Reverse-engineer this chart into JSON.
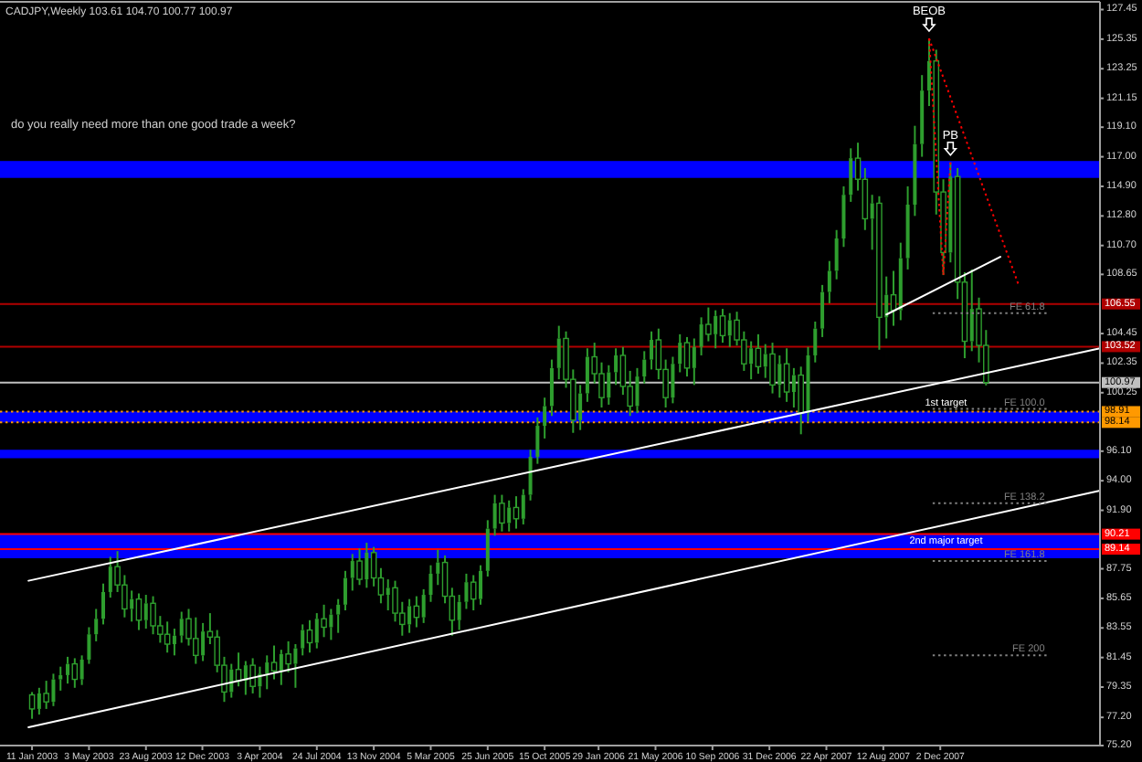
{
  "chart_data": {
    "type": "candlestick",
    "title": "CADJPY,Weekly 103.61 104.70 100.77 100.97",
    "color": "#2e9e2e",
    "x": [
      "2003-01-11",
      "2003-01-25",
      "2003-02-08",
      "2003-02-22",
      "2003-03-08",
      "2003-03-22",
      "2003-04-05",
      "2003-04-19",
      "2003-05-03",
      "2003-05-17",
      "2003-05-31",
      "2003-06-14",
      "2003-06-28",
      "2003-07-12",
      "2003-07-26",
      "2003-08-09",
      "2003-08-23",
      "2003-09-06",
      "2003-09-20",
      "2003-10-04",
      "2003-10-18",
      "2003-11-01",
      "2003-11-15",
      "2003-11-29",
      "2003-12-13",
      "2003-12-27",
      "2004-01-10",
      "2004-01-24",
      "2004-02-07",
      "2004-02-21",
      "2004-03-06",
      "2004-03-20",
      "2004-04-03",
      "2004-04-17",
      "2004-05-01",
      "2004-05-15",
      "2004-05-29",
      "2004-06-12",
      "2004-06-26",
      "2004-07-10",
      "2004-07-24",
      "2004-08-07",
      "2004-08-21",
      "2004-09-04",
      "2004-09-18",
      "2004-10-02",
      "2004-10-16",
      "2004-10-30",
      "2004-11-13",
      "2004-11-27",
      "2004-12-11",
      "2004-12-25",
      "2005-01-08",
      "2005-01-22",
      "2005-02-05",
      "2005-02-19",
      "2005-03-05",
      "2005-03-19",
      "2005-04-02",
      "2005-04-16",
      "2005-04-30",
      "2005-05-14",
      "2005-05-28",
      "2005-06-11",
      "2005-06-25",
      "2005-07-09",
      "2005-07-23",
      "2005-08-06",
      "2005-08-20",
      "2005-09-03",
      "2005-09-17",
      "2005-10-01",
      "2005-10-15",
      "2005-10-29",
      "2005-11-12",
      "2005-11-26",
      "2005-12-10",
      "2005-12-24",
      "2006-01-07",
      "2006-01-21",
      "2006-02-04",
      "2006-02-18",
      "2006-03-04",
      "2006-03-18",
      "2006-04-01",
      "2006-04-15",
      "2006-04-29",
      "2006-05-13",
      "2006-05-27",
      "2006-06-10",
      "2006-06-24",
      "2006-07-08",
      "2006-07-22",
      "2006-08-05",
      "2006-08-19",
      "2006-09-02",
      "2006-09-16",
      "2006-09-30",
      "2006-10-14",
      "2006-10-28",
      "2006-11-11",
      "2006-11-25",
      "2006-12-09",
      "2006-12-23",
      "2007-01-06",
      "2007-01-20",
      "2007-02-03",
      "2007-02-17",
      "2007-03-03",
      "2007-03-17",
      "2007-03-31",
      "2007-04-14",
      "2007-04-28",
      "2007-05-12",
      "2007-05-26",
      "2007-06-09",
      "2007-06-23",
      "2007-07-07",
      "2007-07-21",
      "2007-08-04",
      "2007-08-18",
      "2007-09-01",
      "2007-09-15",
      "2007-09-29",
      "2007-10-13",
      "2007-10-27",
      "2007-11-10",
      "2007-11-24",
      "2007-12-08",
      "2007-12-22",
      "2008-01-05",
      "2008-01-19",
      "2008-02-02",
      "2008-02-16",
      "2008-03-01"
    ],
    "ohlc": [
      [
        78.8,
        79.0,
        77.1,
        77.8
      ],
      [
        77.8,
        79.3,
        77.4,
        78.9
      ],
      [
        78.9,
        79.8,
        77.8,
        78.3
      ],
      [
        78.3,
        80.3,
        78.0,
        79.9
      ],
      [
        79.9,
        80.8,
        79.1,
        80.2
      ],
      [
        80.2,
        81.5,
        79.6,
        81.0
      ],
      [
        81.0,
        81.4,
        79.3,
        79.9
      ],
      [
        79.9,
        81.6,
        79.5,
        81.3
      ],
      [
        81.3,
        83.6,
        81.0,
        83.1
      ],
      [
        83.1,
        84.9,
        82.6,
        84.2
      ],
      [
        84.2,
        86.7,
        83.8,
        86.1
      ],
      [
        86.1,
        88.6,
        85.7,
        87.9
      ],
      [
        87.9,
        89.0,
        86.1,
        86.6
      ],
      [
        86.6,
        87.3,
        84.3,
        84.9
      ],
      [
        84.9,
        86.2,
        84.0,
        85.6
      ],
      [
        85.6,
        86.0,
        83.4,
        84.1
      ],
      [
        84.1,
        85.9,
        83.5,
        85.3
      ],
      [
        85.3,
        85.8,
        83.1,
        83.7
      ],
      [
        83.7,
        84.4,
        82.5,
        83.1
      ],
      [
        83.1,
        84.0,
        81.8,
        82.4
      ],
      [
        82.4,
        83.5,
        81.6,
        83.0
      ],
      [
        83.0,
        84.7,
        82.5,
        84.2
      ],
      [
        84.2,
        84.9,
        82.3,
        82.8
      ],
      [
        82.8,
        84.3,
        81.0,
        81.6
      ],
      [
        81.6,
        83.9,
        81.2,
        83.3
      ],
      [
        83.3,
        84.6,
        82.4,
        82.9
      ],
      [
        82.9,
        83.4,
        80.4,
        80.9
      ],
      [
        80.9,
        81.5,
        78.3,
        79.0
      ],
      [
        79.0,
        81.0,
        78.6,
        80.6
      ],
      [
        80.6,
        81.8,
        79.4,
        79.8
      ],
      [
        79.8,
        81.2,
        78.8,
        80.9
      ],
      [
        80.9,
        81.4,
        78.9,
        79.4
      ],
      [
        79.4,
        80.8,
        78.6,
        80.3
      ],
      [
        80.3,
        81.6,
        79.2,
        81.1
      ],
      [
        81.1,
        82.3,
        79.9,
        80.5
      ],
      [
        80.5,
        82.0,
        79.5,
        81.7
      ],
      [
        81.7,
        82.6,
        80.4,
        81.0
      ],
      [
        81.0,
        82.4,
        79.3,
        82.1
      ],
      [
        82.1,
        83.8,
        81.6,
        83.4
      ],
      [
        83.4,
        84.1,
        81.8,
        82.5
      ],
      [
        82.5,
        84.6,
        82.1,
        84.2
      ],
      [
        84.2,
        85.2,
        82.9,
        83.6
      ],
      [
        83.6,
        84.9,
        82.7,
        84.5
      ],
      [
        84.5,
        85.6,
        83.2,
        85.2
      ],
      [
        85.2,
        87.6,
        84.8,
        87.1
      ],
      [
        87.1,
        88.8,
        86.2,
        88.3
      ],
      [
        88.3,
        89.2,
        86.6,
        87.0
      ],
      [
        87.0,
        89.6,
        86.4,
        88.9
      ],
      [
        88.9,
        89.3,
        86.5,
        87.1
      ],
      [
        87.1,
        87.8,
        85.3,
        85.9
      ],
      [
        85.9,
        87.0,
        84.8,
        86.4
      ],
      [
        86.4,
        86.9,
        84.0,
        84.6
      ],
      [
        84.6,
        85.4,
        83.0,
        83.8
      ],
      [
        83.8,
        85.6,
        83.2,
        85.1
      ],
      [
        85.1,
        85.8,
        83.6,
        84.3
      ],
      [
        84.3,
        86.3,
        83.9,
        85.9
      ],
      [
        85.9,
        88.0,
        85.4,
        87.4
      ],
      [
        87.4,
        89.1,
        86.6,
        88.2
      ],
      [
        88.2,
        88.7,
        85.3,
        85.8
      ],
      [
        85.8,
        86.4,
        83.0,
        84.1
      ],
      [
        84.1,
        85.9,
        83.4,
        85.4
      ],
      [
        85.4,
        87.4,
        84.9,
        86.8
      ],
      [
        86.8,
        87.3,
        84.8,
        85.6
      ],
      [
        85.6,
        88.0,
        85.2,
        87.6
      ],
      [
        87.6,
        91.2,
        87.2,
        90.6
      ],
      [
        90.6,
        93.0,
        90.1,
        92.4
      ],
      [
        92.4,
        93.0,
        90.4,
        91.0
      ],
      [
        91.0,
        92.6,
        90.4,
        92.1
      ],
      [
        92.1,
        92.9,
        90.6,
        91.3
      ],
      [
        91.3,
        93.4,
        90.9,
        93.0
      ],
      [
        93.0,
        96.2,
        92.6,
        95.7
      ],
      [
        95.7,
        98.5,
        95.2,
        97.9
      ],
      [
        97.9,
        99.9,
        97.0,
        99.3
      ],
      [
        99.3,
        102.6,
        98.6,
        102.0
      ],
      [
        102.0,
        105.0,
        101.2,
        104.1
      ],
      [
        104.1,
        104.6,
        100.6,
        101.2
      ],
      [
        101.2,
        101.9,
        97.4,
        98.3
      ],
      [
        98.3,
        100.8,
        97.6,
        100.2
      ],
      [
        100.2,
        103.4,
        99.6,
        102.8
      ],
      [
        102.8,
        103.8,
        100.9,
        101.6
      ],
      [
        101.6,
        102.4,
        99.2,
        99.9
      ],
      [
        99.9,
        102.2,
        99.4,
        101.7
      ],
      [
        101.7,
        103.4,
        100.8,
        102.9
      ],
      [
        102.9,
        103.5,
        100.1,
        100.7
      ],
      [
        100.7,
        101.8,
        98.6,
        99.3
      ],
      [
        99.3,
        102.0,
        98.8,
        101.4
      ],
      [
        101.4,
        103.2,
        100.9,
        102.6
      ],
      [
        102.6,
        104.6,
        101.9,
        104.0
      ],
      [
        104.0,
        104.8,
        101.2,
        101.9
      ],
      [
        101.9,
        102.6,
        99.2,
        99.9
      ],
      [
        99.9,
        102.8,
        99.5,
        102.3
      ],
      [
        102.3,
        104.4,
        101.7,
        103.8
      ],
      [
        103.8,
        104.2,
        101.4,
        102.0
      ],
      [
        102.0,
        104.1,
        100.8,
        103.5
      ],
      [
        103.5,
        105.6,
        102.9,
        105.1
      ],
      [
        105.1,
        106.3,
        103.9,
        104.4
      ],
      [
        104.4,
        106.1,
        103.4,
        105.7
      ],
      [
        105.7,
        106.2,
        103.8,
        104.3
      ],
      [
        104.3,
        105.9,
        103.5,
        105.4
      ],
      [
        105.4,
        106.0,
        103.6,
        104.0
      ],
      [
        104.0,
        104.6,
        101.8,
        102.3
      ],
      [
        102.3,
        103.9,
        101.2,
        103.4
      ],
      [
        103.4,
        104.4,
        101.6,
        102.1
      ],
      [
        102.1,
        103.7,
        101.3,
        103.0
      ],
      [
        103.0,
        103.8,
        100.2,
        100.8
      ],
      [
        100.8,
        102.9,
        99.9,
        102.3
      ],
      [
        102.3,
        103.4,
        99.6,
        100.3
      ],
      [
        100.3,
        102.0,
        99.2,
        101.5
      ],
      [
        101.5,
        102.1,
        97.3,
        98.8
      ],
      [
        98.8,
        103.5,
        98.2,
        102.9
      ],
      [
        102.9,
        105.3,
        102.4,
        104.8
      ],
      [
        104.8,
        107.9,
        104.2,
        107.4
      ],
      [
        107.4,
        109.6,
        106.6,
        108.9
      ],
      [
        108.9,
        111.8,
        108.3,
        111.2
      ],
      [
        111.2,
        114.9,
        110.6,
        114.3
      ],
      [
        114.3,
        117.6,
        113.8,
        116.9
      ],
      [
        116.9,
        118.0,
        114.6,
        115.4
      ],
      [
        115.4,
        116.2,
        111.8,
        112.6
      ],
      [
        112.6,
        114.3,
        110.4,
        113.7
      ],
      [
        113.7,
        114.2,
        103.3,
        105.6
      ],
      [
        105.6,
        108.5,
        104.1,
        107.2
      ],
      [
        107.2,
        108.9,
        105.0,
        106.1
      ],
      [
        106.1,
        110.9,
        105.4,
        109.8
      ],
      [
        109.8,
        114.9,
        109.0,
        113.6
      ],
      [
        113.6,
        119.2,
        112.8,
        117.9
      ],
      [
        117.9,
        122.8,
        117.0,
        121.7
      ],
      [
        121.7,
        125.4,
        120.6,
        123.8
      ],
      [
        123.8,
        124.6,
        112.9,
        114.5
      ],
      [
        114.5,
        115.4,
        108.6,
        110.2
      ],
      [
        110.2,
        116.6,
        109.5,
        115.6
      ],
      [
        115.6,
        116.2,
        106.9,
        108.1
      ],
      [
        108.1,
        108.8,
        102.7,
        103.9
      ],
      [
        103.9,
        109.0,
        103.2,
        106.2
      ],
      [
        106.2,
        107.0,
        102.4,
        103.61
      ],
      [
        103.61,
        104.7,
        100.77,
        100.97
      ]
    ],
    "series": [
      {
        "type": "line",
        "x": [
          "2003-01-04",
          "2008-10-11"
        ],
        "values": [
          86.9,
          103.4
        ],
        "color": "#ffffff"
      },
      {
        "type": "line",
        "x": [
          "2003-01-04",
          "2008-10-11"
        ],
        "values": [
          76.5,
          93.3
        ],
        "color": "#ffffff"
      },
      {
        "type": "line",
        "x": [
          "2007-08-18",
          "2008-03-29"
        ],
        "values": [
          105.8,
          109.9
        ],
        "color": "#ffffff"
      },
      {
        "type": "line",
        "x": [
          "2007-11-10",
          "2008-05-03"
        ],
        "values": [
          125.4,
          108.0
        ],
        "color": "#ff0000",
        "line_style": "dotted"
      },
      {
        "type": "line",
        "x": [
          "2007-11-10",
          "2007-12-08",
          "2007-12-22"
        ],
        "values": [
          125.4,
          108.6,
          116.6
        ],
        "color": "#ff0000",
        "line_style": "dotted"
      },
      {
        "type": "line",
        "name": "FE 61.8",
        "x": [
          "2007-11-17",
          "2008-06-28"
        ],
        "values": [
          105.9,
          105.9
        ],
        "color": "#808080",
        "line_style": "dotted"
      },
      {
        "type": "line",
        "name": "FE 100.0",
        "x": [
          "2007-11-17",
          "2008-06-28"
        ],
        "values": [
          99.1,
          99.1
        ],
        "color": "#808080",
        "line_style": "dotted"
      },
      {
        "type": "line",
        "name": "FE 138.2",
        "x": [
          "2007-11-17",
          "2008-06-28"
        ],
        "values": [
          92.4,
          92.4
        ],
        "color": "#808080",
        "line_style": "dotted"
      },
      {
        "type": "line",
        "name": "FE 161.8",
        "x": [
          "2007-11-17",
          "2008-06-28"
        ],
        "values": [
          88.3,
          88.3
        ],
        "color": "#808080",
        "line_style": "dotted"
      },
      {
        "type": "line",
        "name": "FE 200",
        "x": [
          "2007-11-17",
          "2008-06-28"
        ],
        "values": [
          81.6,
          81.6
        ],
        "color": "#808080",
        "line_style": "dotted"
      }
    ],
    "ref_lines": [
      {
        "axis": "y",
        "value": 106.55,
        "label": "106.55",
        "color": "#b00000"
      },
      {
        "axis": "y",
        "value": 103.52,
        "label": "103.52",
        "color": "#b00000"
      },
      {
        "axis": "y",
        "value": 100.97,
        "label": "100.97",
        "color": "#c0c0c0"
      },
      {
        "axis": "y",
        "value": 98.91,
        "label": "98.91",
        "color": "#ff9900",
        "line_style": "dotted"
      },
      {
        "axis": "y",
        "value": 98.14,
        "label": "98.14",
        "color": "#ff9900",
        "line_style": "dotted"
      },
      {
        "axis": "y",
        "value": 90.21,
        "label": "90.21",
        "color": "#ff0000"
      },
      {
        "axis": "y",
        "value": 89.14,
        "label": "89.14",
        "color": "#ff0000"
      }
    ],
    "bands": [
      {
        "axis": "y",
        "from": 115.5,
        "to": 116.7,
        "color": "#0000ff"
      },
      {
        "axis": "y",
        "from": 98.14,
        "to": 98.91,
        "label": "1st target",
        "color": "#0000ff"
      },
      {
        "axis": "y",
        "from": 95.6,
        "to": 96.2,
        "color": "#0000ff"
      },
      {
        "axis": "y",
        "from": 88.5,
        "to": 90.2,
        "label": "2nd major target",
        "color": "#0000ff"
      }
    ],
    "annotations": [
      "do you really need more than one good trade a week?",
      {
        "text": "BEOB",
        "x": "2007-11-10",
        "y": 125.4
      },
      {
        "text": "PB",
        "x": "2007-12-22",
        "y": 116.6
      }
    ],
    "xlim": [
      "2002-11-09",
      "2008-10-11"
    ],
    "xticks": [
      {
        "value": "2003-01-11",
        "label": "11 Jan 2003"
      },
      {
        "value": "2003-05-03",
        "label": "3 May 2003"
      },
      {
        "value": "2003-08-23",
        "label": "23 Aug 2003"
      },
      {
        "value": "2003-12-12",
        "label": "12 Dec 2003"
      },
      {
        "value": "2004-04-03",
        "label": "3 Apr 2004"
      },
      {
        "value": "2004-07-24",
        "label": "24 Jul 2004"
      },
      {
        "value": "2004-11-13",
        "label": "13 Nov 2004"
      },
      {
        "value": "2005-03-05",
        "label": "5 Mar 2005"
      },
      {
        "value": "2005-06-25",
        "label": "25 Jun 2005"
      },
      {
        "value": "2005-10-15",
        "label": "15 Oct 2005"
      },
      {
        "value": "2006-01-29",
        "label": "29 Jan 2006"
      },
      {
        "value": "2006-05-21",
        "label": "21 May 2006"
      },
      {
        "value": "2006-09-10",
        "label": "10 Sep 2006"
      },
      {
        "value": "2006-12-31",
        "label": "31 Dec 2006"
      },
      {
        "value": "2007-04-22",
        "label": "22 Apr 2007"
      },
      {
        "value": "2007-08-12",
        "label": "12 Aug 2007"
      },
      {
        "value": "2007-12-02",
        "label": "2 Dec 2007"
      }
    ],
    "ylim": [
      75.2,
      128.0
    ],
    "yticks": [
      {
        "value": 75.2,
        "label": "75.20"
      },
      {
        "value": 77.2,
        "label": "77.20"
      },
      79.35,
      81.45,
      83.55,
      85.65,
      87.75,
      {
        "value": 91.9,
        "label": "91.90"
      },
      {
        "value": 94.0,
        "label": "94.00"
      },
      {
        "value": 96.1,
        "label": "96.10"
      },
      100.25,
      102.35,
      104.45,
      108.65,
      {
        "value": 110.7,
        "label": "110.70"
      },
      {
        "value": 112.8,
        "label": "112.80"
      },
      {
        "value": 114.9,
        "label": "114.90"
      },
      {
        "value": 117.0,
        "label": "117.00"
      },
      {
        "value": 119.1,
        "label": "119.10"
      },
      121.15,
      123.25,
      125.35,
      127.45
    ]
  }
}
